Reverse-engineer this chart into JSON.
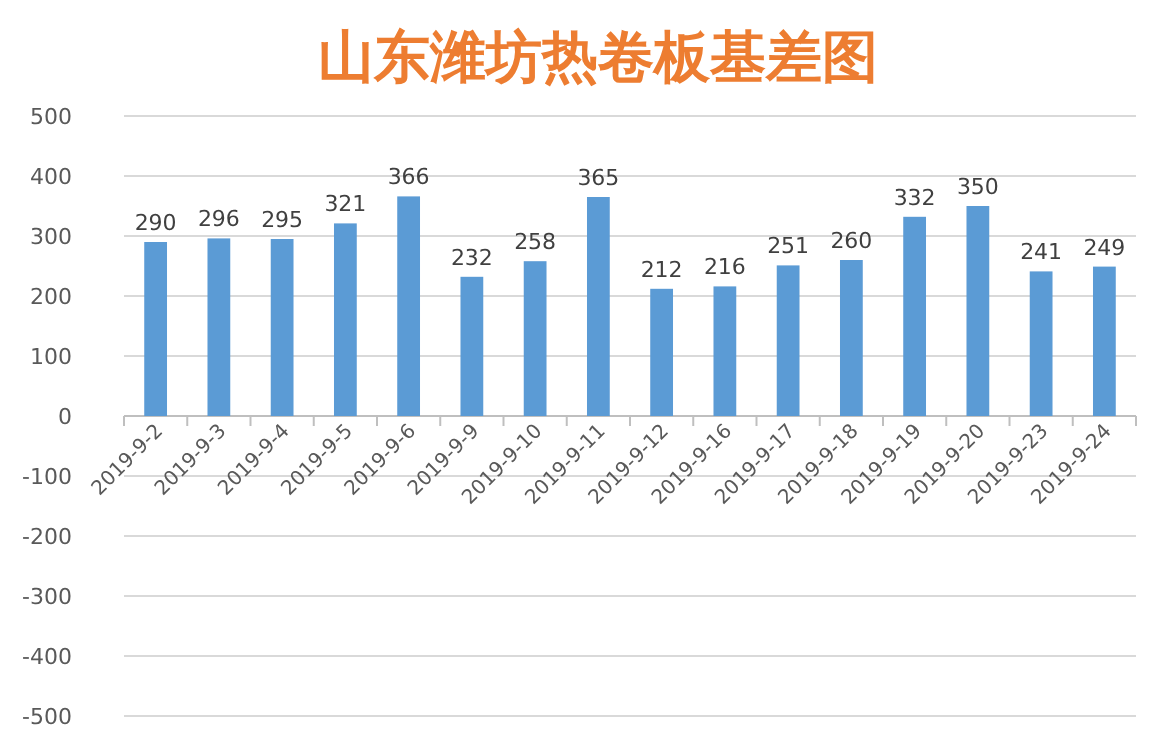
{
  "chart_data": {
    "type": "bar",
    "title": "山东潍坊热卷板基差图",
    "categories": [
      "2019-9-2",
      "2019-9-3",
      "2019-9-4",
      "2019-9-5",
      "2019-9-6",
      "2019-9-9",
      "2019-9-10",
      "2019-9-11",
      "2019-9-12",
      "2019-9-16",
      "2019-9-17",
      "2019-9-18",
      "2019-9-19",
      "2019-9-20",
      "2019-9-23",
      "2019-9-24"
    ],
    "series": [
      {
        "color": "#5b9bd5",
        "values": [
          290,
          296,
          295,
          321,
          366,
          232,
          258,
          365,
          212,
          216,
          251,
          260,
          332,
          350,
          241,
          249
        ]
      }
    ],
    "ylim": [
      -500,
      500
    ],
    "yticks": [
      -500,
      -400,
      -300,
      -200,
      -100,
      0,
      100,
      200,
      300,
      400,
      500
    ],
    "grid": "y",
    "data_labels": true
  }
}
